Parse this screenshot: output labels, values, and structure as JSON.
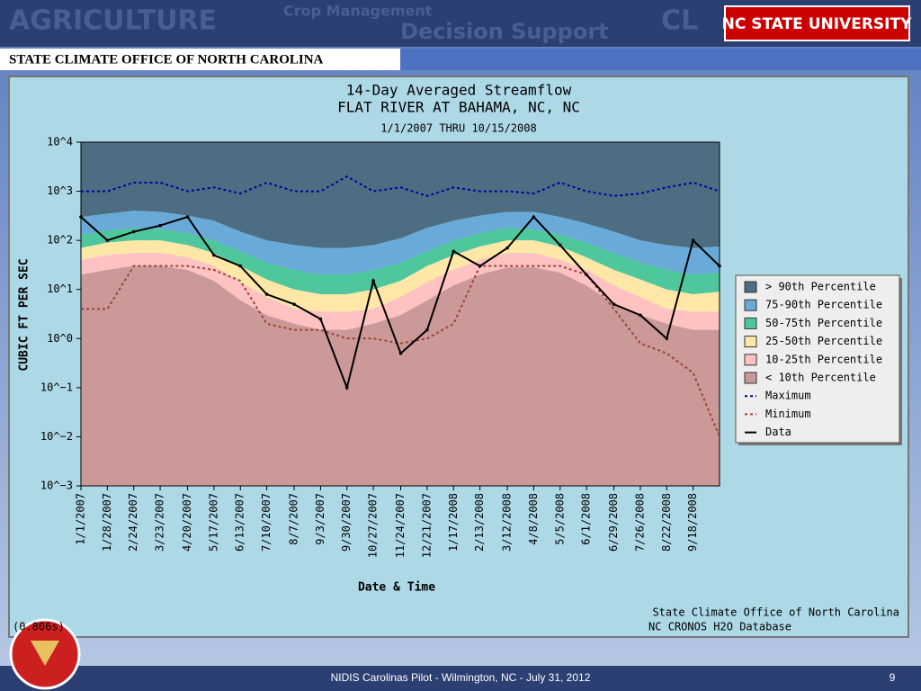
{
  "slide": {
    "header_words": [
      "AGRICULTURE",
      "Crop Management",
      "Decision Support",
      "CL"
    ],
    "logo": "NC STATE UNIVERSITY",
    "banner": "STATE CLIMATE OFFICE OF NORTH CAROLINA",
    "footer": "NIDIS Carolinas Pilot - Wilmington, NC - July 31, 2012",
    "page_number": "9"
  },
  "chart_data": {
    "type": "percentile_bands",
    "title": "14-Day Averaged Streamflow",
    "subtitle": "FLAT RIVER AT BAHAMA, NC, NC",
    "period": "1/1/2007 THRU 10/15/2008",
    "y_label": "CUBIC FT PER SEC",
    "x_label": "Date & Time",
    "credits": [
      "State Climate Office of North Carolina",
      "NC CRONOS H2O Database"
    ],
    "timing": "(0.806s)",
    "log_y": true,
    "legend": "right",
    "ylim": [
      0.001,
      10000
    ],
    "yticks": [
      {
        "value": 10000,
        "label": "10^4"
      },
      {
        "value": 1000,
        "label": "10^3"
      },
      {
        "value": 100,
        "label": "10^2"
      },
      {
        "value": 10,
        "label": "10^1"
      },
      {
        "value": 1,
        "label": "10^0"
      },
      {
        "value": 0.1,
        "label": "10^−1"
      },
      {
        "value": 0.01,
        "label": "10^−2"
      },
      {
        "value": 0.001,
        "label": "10^−3"
      }
    ],
    "xlim": [
      "1/1/2007",
      "10/15/2008"
    ],
    "xticks": [
      "1/1/2007",
      "1/28/2007",
      "2/24/2007",
      "3/23/2007",
      "4/20/2007",
      "5/17/2007",
      "6/13/2007",
      "7/10/2007",
      "8/7/2007",
      "9/3/2007",
      "9/30/2007",
      "10/27/2007",
      "11/24/2007",
      "12/21/2007",
      "1/17/2008",
      "2/13/2008",
      "3/12/2008",
      "4/8/2008",
      "5/5/2008",
      "6/1/2008",
      "6/29/2008",
      "7/26/2008",
      "8/22/2008",
      "9/18/2008"
    ],
    "x": [
      "1/1/2007",
      "1/28/2007",
      "2/24/2007",
      "3/23/2007",
      "4/20/2007",
      "5/17/2007",
      "6/13/2007",
      "7/10/2007",
      "8/7/2007",
      "9/3/2007",
      "9/30/2007",
      "10/27/2007",
      "11/24/2007",
      "12/21/2007",
      "1/17/2008",
      "2/13/2008",
      "3/12/2008",
      "4/8/2008",
      "5/5/2008",
      "6/1/2008",
      "6/29/2008",
      "7/26/2008",
      "8/22/2008",
      "9/18/2008",
      "10/15/2008"
    ],
    "series": [
      {
        "name": "> 90th Percentile",
        "style": "band",
        "color": "#4d6d82"
      },
      {
        "name": "75-90th Percentile",
        "style": "band",
        "color": "#6aaad8",
        "values": [
          300,
          350,
          400,
          380,
          320,
          250,
          150,
          100,
          80,
          70,
          70,
          80,
          110,
          180,
          250,
          320,
          380,
          380,
          300,
          220,
          150,
          100,
          80,
          70,
          75
        ]
      },
      {
        "name": "50-75th Percentile",
        "style": "band",
        "color": "#4ec79c",
        "values": [
          130,
          160,
          180,
          170,
          140,
          100,
          60,
          35,
          25,
          20,
          20,
          25,
          35,
          60,
          100,
          140,
          180,
          170,
          130,
          90,
          55,
          35,
          25,
          20,
          22
        ]
      },
      {
        "name": "25-50th Percentile",
        "style": "band",
        "color": "#ffe7a8",
        "values": [
          70,
          90,
          100,
          100,
          80,
          55,
          30,
          16,
          10,
          8,
          8,
          10,
          15,
          30,
          50,
          75,
          100,
          100,
          75,
          45,
          25,
          16,
          10,
          8,
          9
        ]
      },
      {
        "name": "10-25th Percentile",
        "style": "band",
        "color": "#ffc2c2",
        "values": [
          40,
          50,
          55,
          55,
          45,
          30,
          14,
          7,
          4,
          3.5,
          3.5,
          4,
          7,
          14,
          25,
          40,
          55,
          55,
          40,
          25,
          12,
          7,
          4,
          3.5,
          3.5
        ]
      },
      {
        "name": "< 10th Percentile",
        "style": "band",
        "color": "#cc9999",
        "values": [
          20,
          25,
          30,
          30,
          25,
          15,
          6,
          3,
          2,
          1.5,
          1.5,
          2,
          3,
          6,
          12,
          20,
          28,
          28,
          22,
          12,
          5,
          3,
          2,
          1.5,
          1.5
        ]
      },
      {
        "name": "Maximum",
        "style": "dashed",
        "color": "#000099",
        "values": [
          1000,
          1000,
          1500,
          1500,
          1000,
          1200,
          900,
          1500,
          1000,
          1000,
          2000,
          1000,
          1200,
          800,
          1200,
          1000,
          1000,
          900,
          1500,
          1000,
          800,
          900,
          1200,
          1500,
          1000
        ]
      },
      {
        "name": "Minimum",
        "style": "dashed",
        "color": "#994433",
        "values": [
          4,
          4,
          30,
          30,
          30,
          25,
          15,
          2,
          1.5,
          1.5,
          1,
          1,
          0.8,
          1,
          2,
          30,
          30,
          30,
          30,
          20,
          4,
          0.8,
          0.5,
          0.2,
          0.01
        ]
      },
      {
        "name": "Data",
        "style": "line",
        "color": "#000000",
        "values": [
          300,
          100,
          150,
          200,
          300,
          50,
          30,
          8,
          5,
          2.5,
          0.1,
          15,
          0.5,
          1.5,
          60,
          30,
          70,
          300,
          80,
          20,
          5,
          3,
          1,
          100,
          30
        ]
      }
    ]
  }
}
